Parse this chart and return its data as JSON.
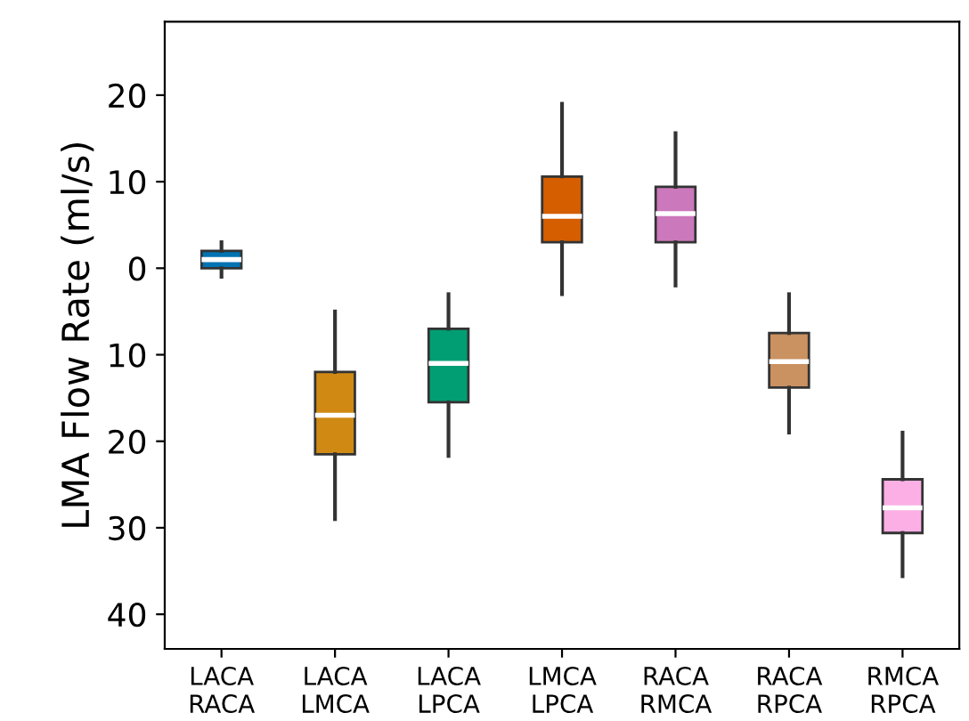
{
  "chart_data": {
    "type": "box",
    "ylabel": "LMA Flow Rate (ml/s)",
    "categories": [
      "LACA\nRACA",
      "LACA\nLMCA",
      "LACA\nLPCA",
      "LMCA\nLPCA",
      "RACA\nRMCA",
      "RACA\nRPCA",
      "RMCA\nRPCA"
    ],
    "colors": [
      "#0173b2",
      "#d08a14",
      "#029e73",
      "#d55e00",
      "#cc78bc",
      "#ca9161",
      "#fbafe4"
    ],
    "boxes": [
      {
        "low": -1,
        "q1": 0,
        "median": 1,
        "q3": 2,
        "high": 3
      },
      {
        "low": -29,
        "q1": -21.5,
        "median": -17,
        "q3": -12,
        "high": -5
      },
      {
        "low": -21.7,
        "q1": -15.5,
        "median": -11,
        "q3": -7,
        "high": -3
      },
      {
        "low": -3,
        "q1": 3,
        "median": 6,
        "q3": 10.6,
        "high": 19
      },
      {
        "low": -2,
        "q1": 3,
        "median": 6.3,
        "q3": 9.4,
        "high": 15.6
      },
      {
        "low": -19,
        "q1": -13.8,
        "median": -10.8,
        "q3": -7.5,
        "high": -3
      },
      {
        "low": -35.6,
        "q1": -30.6,
        "median": -27.7,
        "q3": -24.4,
        "high": -19
      }
    ],
    "ylim": [
      -44,
      28.5
    ],
    "yticks": [
      {
        "value": 20,
        "label": "20"
      },
      {
        "value": 10,
        "label": "10"
      },
      0,
      {
        "value": -10,
        "label": "10"
      },
      {
        "value": -20,
        "label": "20"
      },
      {
        "value": -30,
        "label": "30"
      },
      {
        "value": -40,
        "label": "40"
      }
    ],
    "grid": false,
    "legend": false
  }
}
